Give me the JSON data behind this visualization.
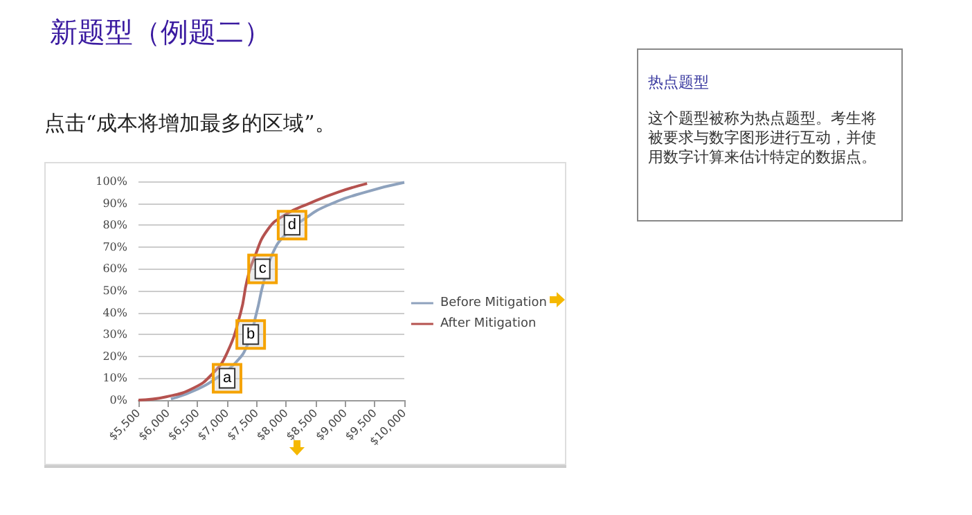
{
  "chart_data": {
    "type": "line",
    "title": "新题型（例题二）",
    "subtitle": "点击“成本将增加最多的区域”。",
    "annotations": [
      "热点题型",
      "这个题型被称为热点题型。考生将被要求与数字图形进行互动，并使用数字计算来估计特定的数据点。",
      {
        "text": "a",
        "x": 7000,
        "y": 10
      },
      {
        "text": "b",
        "x": 7400,
        "y": 30
      },
      {
        "text": "c",
        "x": 7600,
        "y": 60
      },
      {
        "text": "d",
        "x": 8100,
        "y": 80
      }
    ],
    "xlim": [
      5500,
      10000
    ],
    "xticks": [
      {
        "value": 5500,
        "label": "$5,500"
      },
      {
        "value": 6000,
        "label": "$6,000"
      },
      {
        "value": 6500,
        "label": "$6,500"
      },
      {
        "value": 7000,
        "label": "$7,000"
      },
      {
        "value": 7500,
        "label": "$7,500"
      },
      {
        "value": 8000,
        "label": "$8,000"
      },
      {
        "value": 8500,
        "label": "$8,500"
      },
      {
        "value": 9000,
        "label": "$9,000"
      },
      {
        "value": 9500,
        "label": "$9,500"
      },
      {
        "value": 10000,
        "label": "$10,000"
      }
    ],
    "ylim": [
      0,
      100
    ],
    "yticks": [
      {
        "value": 0,
        "label": "0%"
      },
      {
        "value": 10,
        "label": "10%"
      },
      {
        "value": 20,
        "label": "20%"
      },
      {
        "value": 30,
        "label": "30%"
      },
      {
        "value": 40,
        "label": "40%"
      },
      {
        "value": 50,
        "label": "50%"
      },
      {
        "value": 60,
        "label": "60%"
      },
      {
        "value": 70,
        "label": "70%"
      },
      {
        "value": 80,
        "label": "80%"
      },
      {
        "value": 90,
        "label": "90%"
      },
      {
        "value": 100,
        "label": "100%"
      }
    ],
    "series": [
      {
        "name": "Before Mitigation",
        "color": "#8ea2bd",
        "x": [
          6050,
          6500,
          6870,
          7140,
          7340,
          7500,
          7610,
          7770,
          8000,
          8320,
          8700,
          9330,
          10000
        ],
        "values": [
          0.5,
          5,
          11,
          17,
          25,
          40,
          53,
          67,
          76,
          83,
          89,
          95,
          99.5
        ]
      },
      {
        "name": "After Mitigation",
        "color": "#b5524f",
        "x": [
          5500,
          5970,
          6440,
          6750,
          6990,
          7230,
          7340,
          7460,
          7690,
          8000,
          8400,
          8870,
          9370
        ],
        "values": [
          0,
          1.5,
          5.6,
          12,
          21,
          40,
          55,
          65,
          78,
          85,
          90,
          95,
          99
        ]
      }
    ],
    "grid": "y",
    "legend": "right",
    "marker": "none"
  }
}
